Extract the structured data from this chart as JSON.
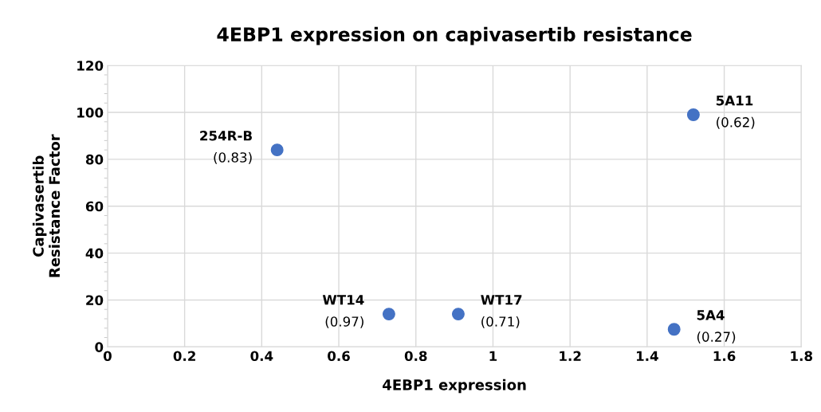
{
  "chart_data": {
    "type": "scatter",
    "title": "4EBP1 expression on capivasertib resistance",
    "xlabel": "4EBP1 expression",
    "ylabel": "Capivasertib\nResistance Factor",
    "x": [
      0.44,
      0.73,
      0.91,
      1.47,
      1.52
    ],
    "series": [
      {
        "color": "#4472c4",
        "values": [
          84,
          14,
          14,
          7.5,
          99
        ]
      }
    ],
    "marker": "circle",
    "xlim": [
      0,
      1.8
    ],
    "xticks": [
      0,
      0.2,
      0.4,
      0.6,
      0.8,
      1,
      1.2,
      1.4,
      1.6,
      1.8
    ],
    "ylim": [
      0,
      120
    ],
    "yticks": [
      0,
      20,
      40,
      60,
      80,
      100,
      120
    ],
    "grid": true,
    "annotations": [
      {
        "text": "254R-B\n(0.83)",
        "x": 0.44,
        "y": 84
      },
      {
        "text": "WT14\n(0.97)",
        "x": 0.73,
        "y": 14
      },
      {
        "text": "WT17\n(0.71)",
        "x": 0.91,
        "y": 14
      },
      {
        "text": "5A4\n(0.27)",
        "x": 1.47,
        "y": 7.5
      },
      {
        "text": "5A11\n(0.62)",
        "x": 1.52,
        "y": 99
      }
    ]
  }
}
